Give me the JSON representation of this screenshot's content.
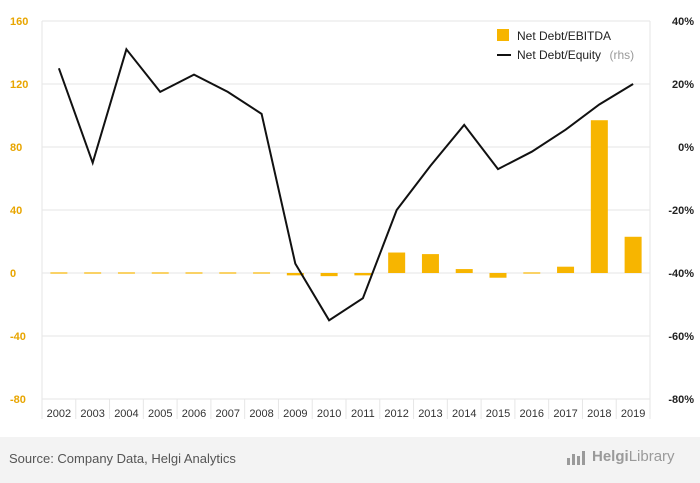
{
  "chart_data": {
    "type": "bar+line",
    "categories": [
      "2002",
      "2003",
      "2004",
      "2005",
      "2006",
      "2007",
      "2008",
      "2009",
      "2010",
      "2011",
      "2012",
      "2013",
      "2014",
      "2015",
      "2016",
      "2017",
      "2018",
      "2019"
    ],
    "series": [
      {
        "name": "Net Debt/EBITDA",
        "type": "bar",
        "axis": "left",
        "color": "#f7b500",
        "values": [
          0.5,
          0,
          0.4,
          0.4,
          0.3,
          0.3,
          0.3,
          -1.5,
          -2,
          -1.5,
          13,
          12,
          2.5,
          -3,
          -0.5,
          4,
          97,
          23
        ]
      },
      {
        "name": "Net Debt/Equity",
        "name_suffix": "(rhs)",
        "type": "line",
        "axis": "right",
        "color": "#111111",
        "values": [
          25,
          -5,
          31,
          17.5,
          23,
          17.5,
          10.5,
          -37,
          -55,
          -48,
          -20,
          -6,
          7,
          -7,
          -1.5,
          5.5,
          13.5,
          20
        ]
      }
    ],
    "yleft": {
      "lim": [
        -80,
        160
      ],
      "ticks": [
        -80,
        -40,
        0,
        40,
        80,
        120,
        160
      ],
      "color": "#e8a500"
    },
    "yright": {
      "lim": [
        -80,
        40
      ],
      "ticks": [
        -80,
        -60,
        -40,
        -20,
        0,
        20,
        40
      ],
      "unit": "%",
      "color": "#222222"
    },
    "grid": true,
    "legend": "top-right"
  },
  "footer": {
    "source": "Source: Company Data, Helgi Analytics",
    "logo_name": "Helgi",
    "logo_suffix": "Library"
  }
}
